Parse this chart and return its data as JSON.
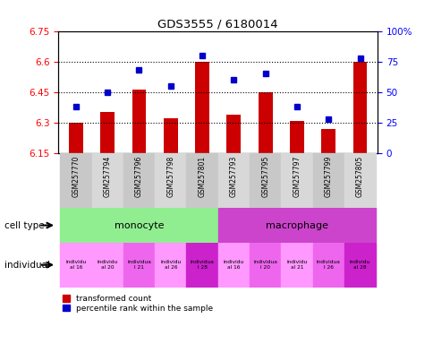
{
  "title": "GDS3555 / 6180014",
  "samples": [
    "GSM257770",
    "GSM257794",
    "GSM257796",
    "GSM257798",
    "GSM257801",
    "GSM257793",
    "GSM257795",
    "GSM257797",
    "GSM257799",
    "GSM257805"
  ],
  "transformed_count": [
    6.3,
    6.35,
    6.46,
    6.32,
    6.6,
    6.34,
    6.45,
    6.31,
    6.27,
    6.6
  ],
  "percentile_rank": [
    38,
    50,
    68,
    55,
    80,
    60,
    65,
    38,
    28,
    78
  ],
  "ylim_left": [
    6.15,
    6.75
  ],
  "ylim_right": [
    0,
    100
  ],
  "yticks_left": [
    6.15,
    6.3,
    6.45,
    6.6,
    6.75
  ],
  "ytick_labels_left": [
    "6.15",
    "6.3",
    "6.45",
    "6.6",
    "6.75"
  ],
  "yticks_right": [
    0,
    25,
    50,
    75,
    100
  ],
  "ytick_labels_right": [
    "0",
    "25",
    "50",
    "75",
    "100%"
  ],
  "bar_color": "#cc0000",
  "dot_color": "#0000cc",
  "bar_width": 0.45,
  "monocyte_color": "#90ee90",
  "macrophage_color": "#cc44cc",
  "indiv_labels": [
    "individu\nal 16",
    "individu\nal 20",
    "individua\nl 21",
    "individu\nal 26",
    "individua\nl 28",
    "individu\nal 16",
    "individua\nl 20",
    "individu\nal 21",
    "individua\nl 26",
    "individu\nal 28"
  ],
  "indiv_colors": [
    "#ff99ff",
    "#ff99ff",
    "#ee66ee",
    "#ff99ff",
    "#cc22cc",
    "#ff99ff",
    "#ee66ee",
    "#ff99ff",
    "#ee66ee",
    "#cc22cc"
  ],
  "sample_bg_colors": [
    "#c8c8c8",
    "#d8d8d8",
    "#c8c8c8",
    "#d8d8d8",
    "#c8c8c8",
    "#d8d8d8",
    "#c8c8c8",
    "#d8d8d8",
    "#c8c8c8",
    "#d8d8d8"
  ],
  "legend_red": "transformed count",
  "legend_blue": "percentile rank within the sample",
  "grid_lines": [
    6.3,
    6.45,
    6.6
  ],
  "background_color": "#ffffff"
}
